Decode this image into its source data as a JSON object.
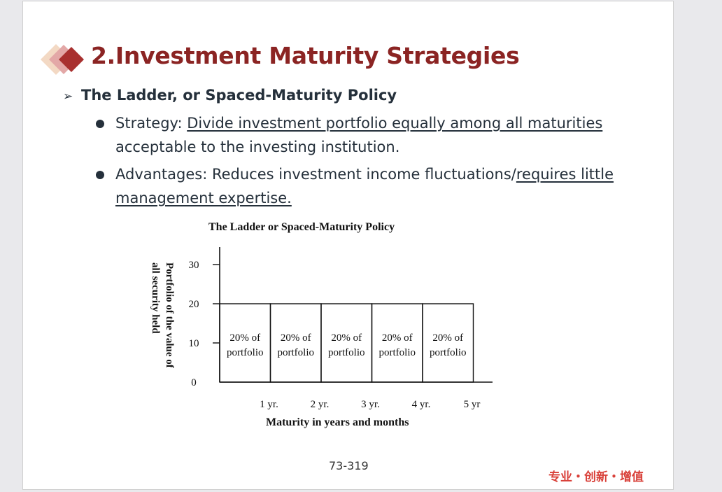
{
  "slide": {
    "title": "2.Investment Maturity Strategies",
    "subtitle": "The Ladder, or Spaced-Maturity Policy",
    "subtitle_marker": "➢",
    "bullets": [
      {
        "label": "Strategy: ",
        "underlined": "Divide  investment portfolio equally among all  maturities",
        "rest": "acceptable  to the investing institution."
      },
      {
        "label": "Advantages: Reduces investment income fluctuations/",
        "underlined_1": "requires little",
        "underlined_2": "management expertise."
      }
    ],
    "page_number": "73-319",
    "brand_text": "专业・创新・增值",
    "colors": {
      "title": "#8b2423",
      "text": "#25303b",
      "brand": "#d9413a"
    }
  },
  "chart_data": {
    "type": "bar",
    "title": "The Ladder or Spaced-Maturity Policy",
    "xlabel": "Maturity in years and months",
    "ylabel": "Portfolio of the value of all security held",
    "ylim": [
      0,
      30
    ],
    "yticks": [
      "0",
      "10",
      "20",
      "30"
    ],
    "xticks": [
      "1 yr.",
      "2 yr.",
      "3 yr.",
      "4 yr.",
      "5 yr"
    ],
    "series": [
      {
        "values": [
          20,
          20,
          20,
          20,
          20
        ],
        "bar_labels": [
          [
            "20% of",
            "portfolio"
          ],
          [
            "20% of",
            "portfolio"
          ],
          [
            "20% of",
            "portfolio"
          ],
          [
            "20% of",
            "portfolio"
          ],
          [
            "20% of",
            "portfolio"
          ]
        ]
      }
    ]
  }
}
